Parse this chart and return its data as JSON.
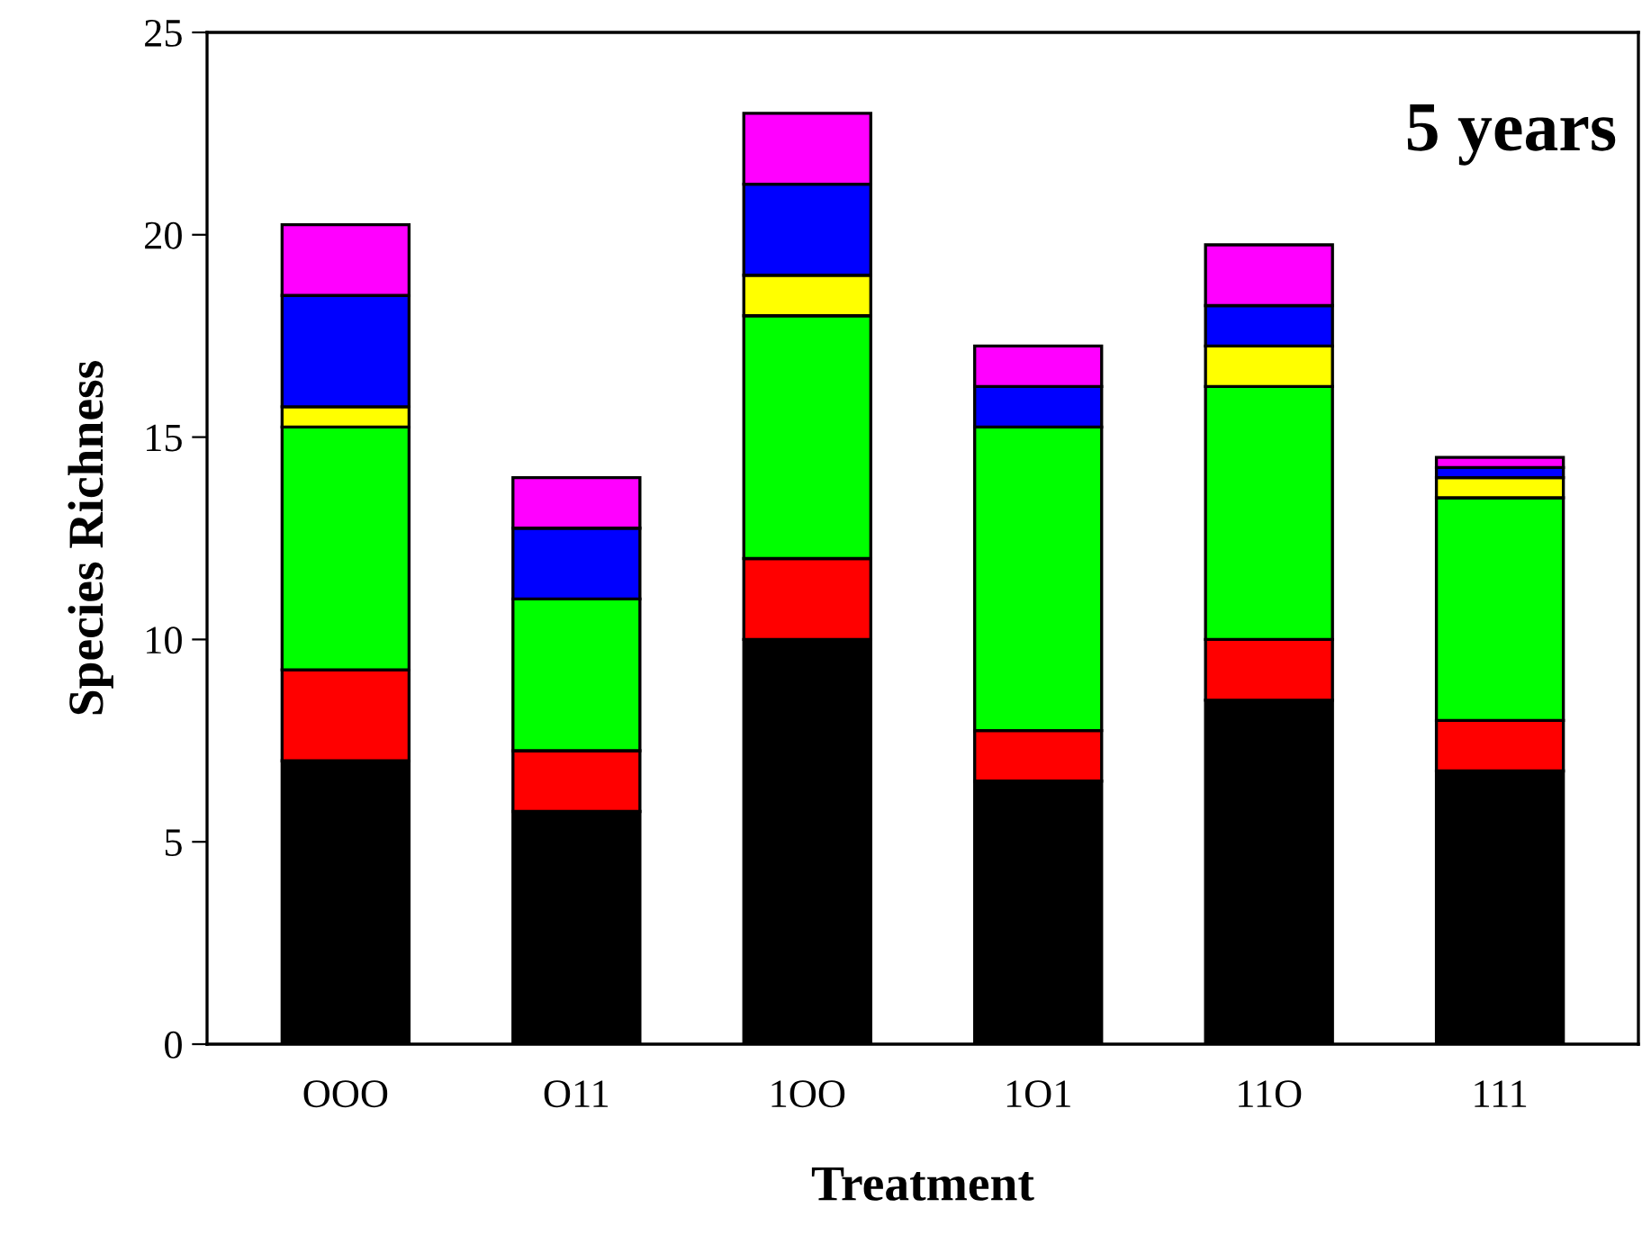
{
  "chart_data": {
    "type": "bar",
    "stacked": true,
    "xlabel": "Treatment",
    "ylabel": "Species Richness",
    "annotations": [
      "5 years"
    ],
    "categories": [
      "OOO",
      "O11",
      "1OO",
      "1O1",
      "11O",
      "111"
    ],
    "series": [
      {
        "color": "#000000",
        "values": [
          7,
          5.75,
          10,
          6.5,
          8.5,
          6.75
        ]
      },
      {
        "color": "#ff0000",
        "values": [
          2.25,
          1.5,
          2,
          1.25,
          1.5,
          1.25
        ]
      },
      {
        "color": "#00ff00",
        "values": [
          6,
          3.75,
          6,
          7.5,
          6.25,
          5.5
        ]
      },
      {
        "color": "#ffff00",
        "values": [
          0.5,
          null,
          1,
          null,
          1,
          0.5
        ]
      },
      {
        "color": "#0000ff",
        "values": [
          2.75,
          1.75,
          2.25,
          1,
          1,
          0.25
        ]
      },
      {
        "color": "#ff00ff",
        "values": [
          1.75,
          1.25,
          1.75,
          1,
          1.5,
          0.25
        ]
      }
    ],
    "ylim": [
      0,
      25
    ],
    "yticks": [
      0,
      5,
      10,
      15,
      20,
      25
    ],
    "grid": false,
    "legend": false
  }
}
